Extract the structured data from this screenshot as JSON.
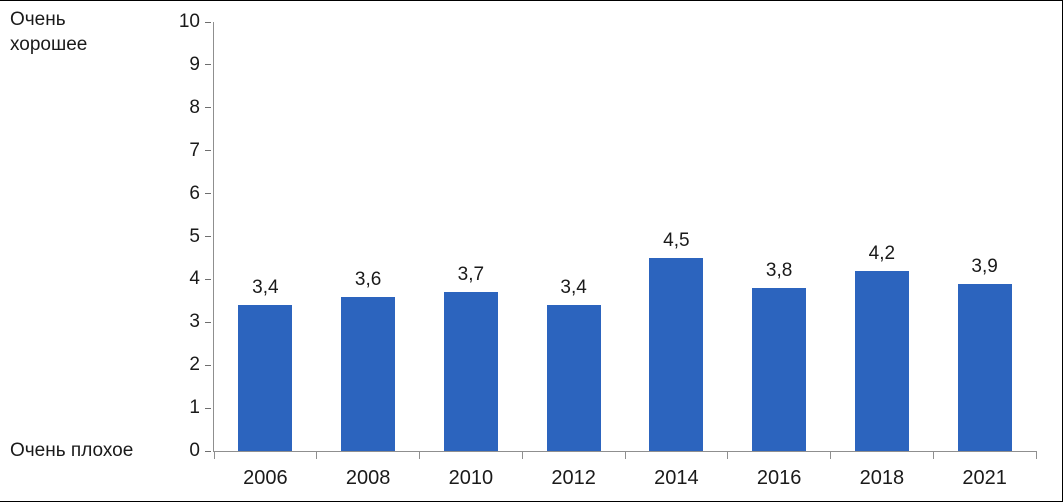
{
  "chart_data": {
    "type": "bar",
    "categories": [
      "2006",
      "2008",
      "2010",
      "2012",
      "2014",
      "2016",
      "2018",
      "2021"
    ],
    "values": [
      3.4,
      3.6,
      3.7,
      3.4,
      4.5,
      3.8,
      4.2,
      3.9
    ],
    "value_labels": [
      "3,4",
      "3,6",
      "3,7",
      "3,4",
      "4,5",
      "3,8",
      "4,2",
      "3,9"
    ],
    "title": "",
    "xlabel": "",
    "ylabel_top": "Очень хорошее",
    "ylabel_bottom": "Очень плохое",
    "ylim": [
      0,
      10
    ],
    "y_ticks": [
      0,
      1,
      2,
      3,
      4,
      5,
      6,
      7,
      8,
      9,
      10
    ],
    "grid": false,
    "legend": false,
    "bar_color": "#2c64be",
    "axis_color": "#8f8f8f",
    "text_color": "#1a1a1a",
    "frame_border_color": "#000000"
  }
}
